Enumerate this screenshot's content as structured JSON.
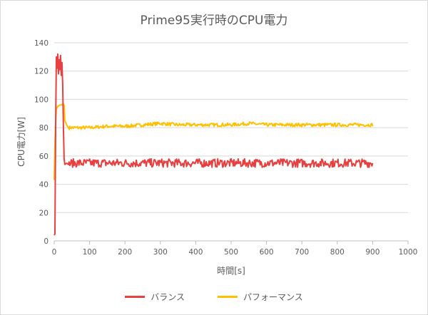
{
  "chart_data": {
    "type": "line",
    "title": "Prime95実行時のCPU電力",
    "xlabel": "時間[s]",
    "ylabel": "CPU電力[W]",
    "xlim": [
      0,
      1000
    ],
    "ylim": [
      0,
      140
    ],
    "x_ticks": [
      0,
      100,
      200,
      300,
      400,
      500,
      600,
      700,
      800,
      900,
      1000
    ],
    "y_ticks": [
      0,
      20,
      40,
      60,
      80,
      100,
      120,
      140
    ],
    "grid": "horizontal",
    "legend_position": "bottom",
    "series": [
      {
        "name": "バランス",
        "color": "#e84040",
        "x": [
          0,
          2,
          4,
          6,
          8,
          10,
          12,
          14,
          16,
          18,
          20,
          22,
          24,
          26,
          28,
          30,
          35,
          40,
          50,
          100,
          200,
          300,
          400,
          500,
          600,
          700,
          800,
          900
        ],
        "y": [
          4,
          5,
          80,
          130,
          122,
          132,
          118,
          128,
          121,
          131,
          117,
          126,
          110,
          80,
          58,
          54,
          55,
          54,
          55,
          55,
          55,
          55,
          55,
          55,
          55,
          55,
          55,
          55
        ],
        "noise_amplitude": 3
      },
      {
        "name": "パフォーマンス",
        "color": "#ffc000",
        "x": [
          0,
          3,
          6,
          10,
          15,
          20,
          25,
          28,
          30,
          35,
          40,
          50,
          60,
          100,
          150,
          200,
          250,
          300,
          350,
          400,
          450,
          500,
          550,
          600,
          650,
          700,
          750,
          800,
          850,
          900
        ],
        "y": [
          43,
          80,
          93,
          95,
          96,
          96,
          97,
          96,
          85,
          82,
          80,
          80,
          80,
          80,
          81,
          81,
          82,
          83,
          82,
          82,
          82,
          82,
          83,
          82,
          82,
          82,
          82,
          82,
          82,
          82
        ],
        "noise_amplitude": 1.2
      }
    ]
  }
}
